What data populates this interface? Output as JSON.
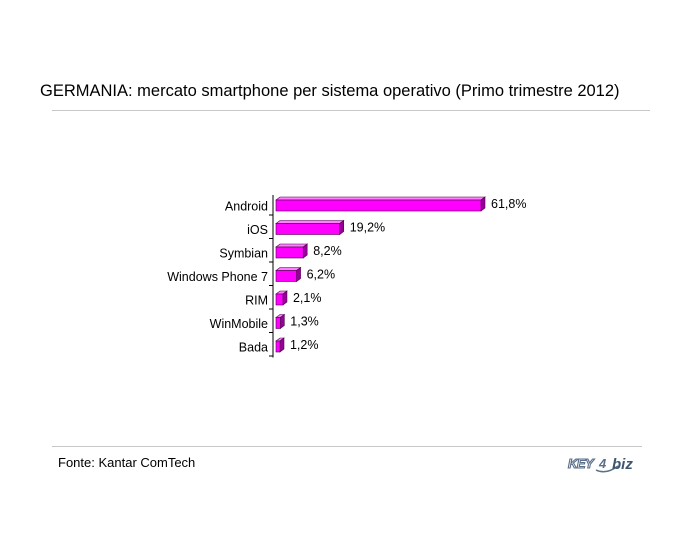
{
  "chart_data": {
    "type": "bar",
    "orientation": "horizontal",
    "title": "GERMANIA: mercato smartphone per sistema operativo (Primo trimestre 2012)",
    "categories": [
      "Android",
      "iOS",
      "Symbian",
      "Windows Phone 7",
      "RIM",
      "WinMobile",
      "Bada"
    ],
    "values": [
      61.8,
      19.2,
      8.2,
      6.2,
      2.1,
      1.3,
      1.2
    ],
    "value_labels": [
      "61,8%",
      "19,2%",
      "8,2%",
      "6,2%",
      "2,1%",
      "1,3%",
      "1,2%"
    ],
    "xlim": [
      0,
      61.8
    ],
    "grid": false,
    "legend": "none",
    "colors": {
      "bar_front": "#ff00ff",
      "bar_top": "#ff80ff",
      "bar_side": "#990099",
      "bar_edge": "#4d004d"
    }
  },
  "footer": {
    "source": "Fonte: Kantar ComTech",
    "logo_text_key": "KEY",
    "logo_text_num": "4",
    "logo_text_biz": "biz",
    "logo_icon": "key4biz-logo"
  }
}
